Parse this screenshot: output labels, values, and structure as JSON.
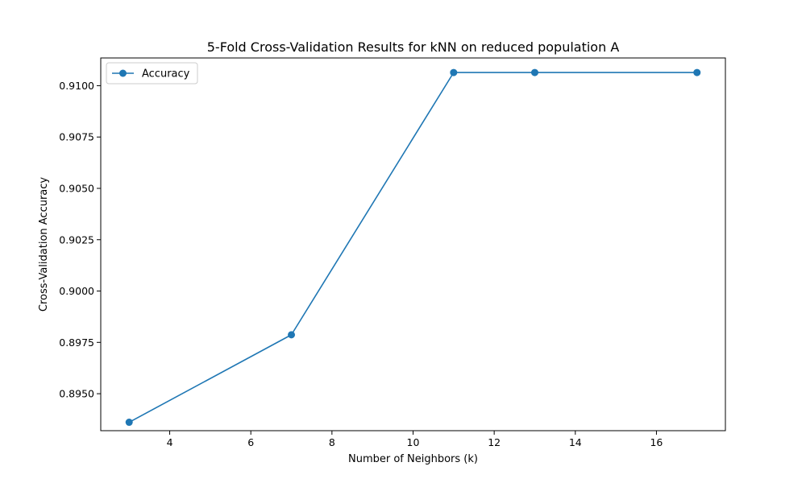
{
  "chart_data": {
    "type": "line",
    "title": "5-Fold Cross-Validation Results for kNN on reduced population A",
    "xlabel": "Number of Neighbors (k)",
    "ylabel": "Cross-Validation Accuracy",
    "xlim": [
      2.3,
      17.7
    ],
    "ylim": [
      0.8932,
      0.91135
    ],
    "x_ticks": [
      4,
      6,
      8,
      10,
      12,
      14,
      16
    ],
    "y_ticks": [
      0.895,
      0.8975,
      0.9,
      0.9025,
      0.905,
      0.9075,
      0.91
    ],
    "x_tick_labels": [
      "4",
      "6",
      "8",
      "10",
      "12",
      "14",
      "16"
    ],
    "y_tick_labels": [
      "0.8950",
      "0.8975",
      "0.9000",
      "0.9025",
      "0.9050",
      "0.9075",
      "0.9100"
    ],
    "grid": false,
    "legend_position": "top-left",
    "series": [
      {
        "name": "Accuracy",
        "color": "#1f77b4",
        "marker": "circle",
        "x": [
          3,
          7,
          11,
          13,
          17
        ],
        "y": [
          0.89361,
          0.89787,
          0.91064,
          0.91064,
          0.91064
        ]
      }
    ]
  }
}
